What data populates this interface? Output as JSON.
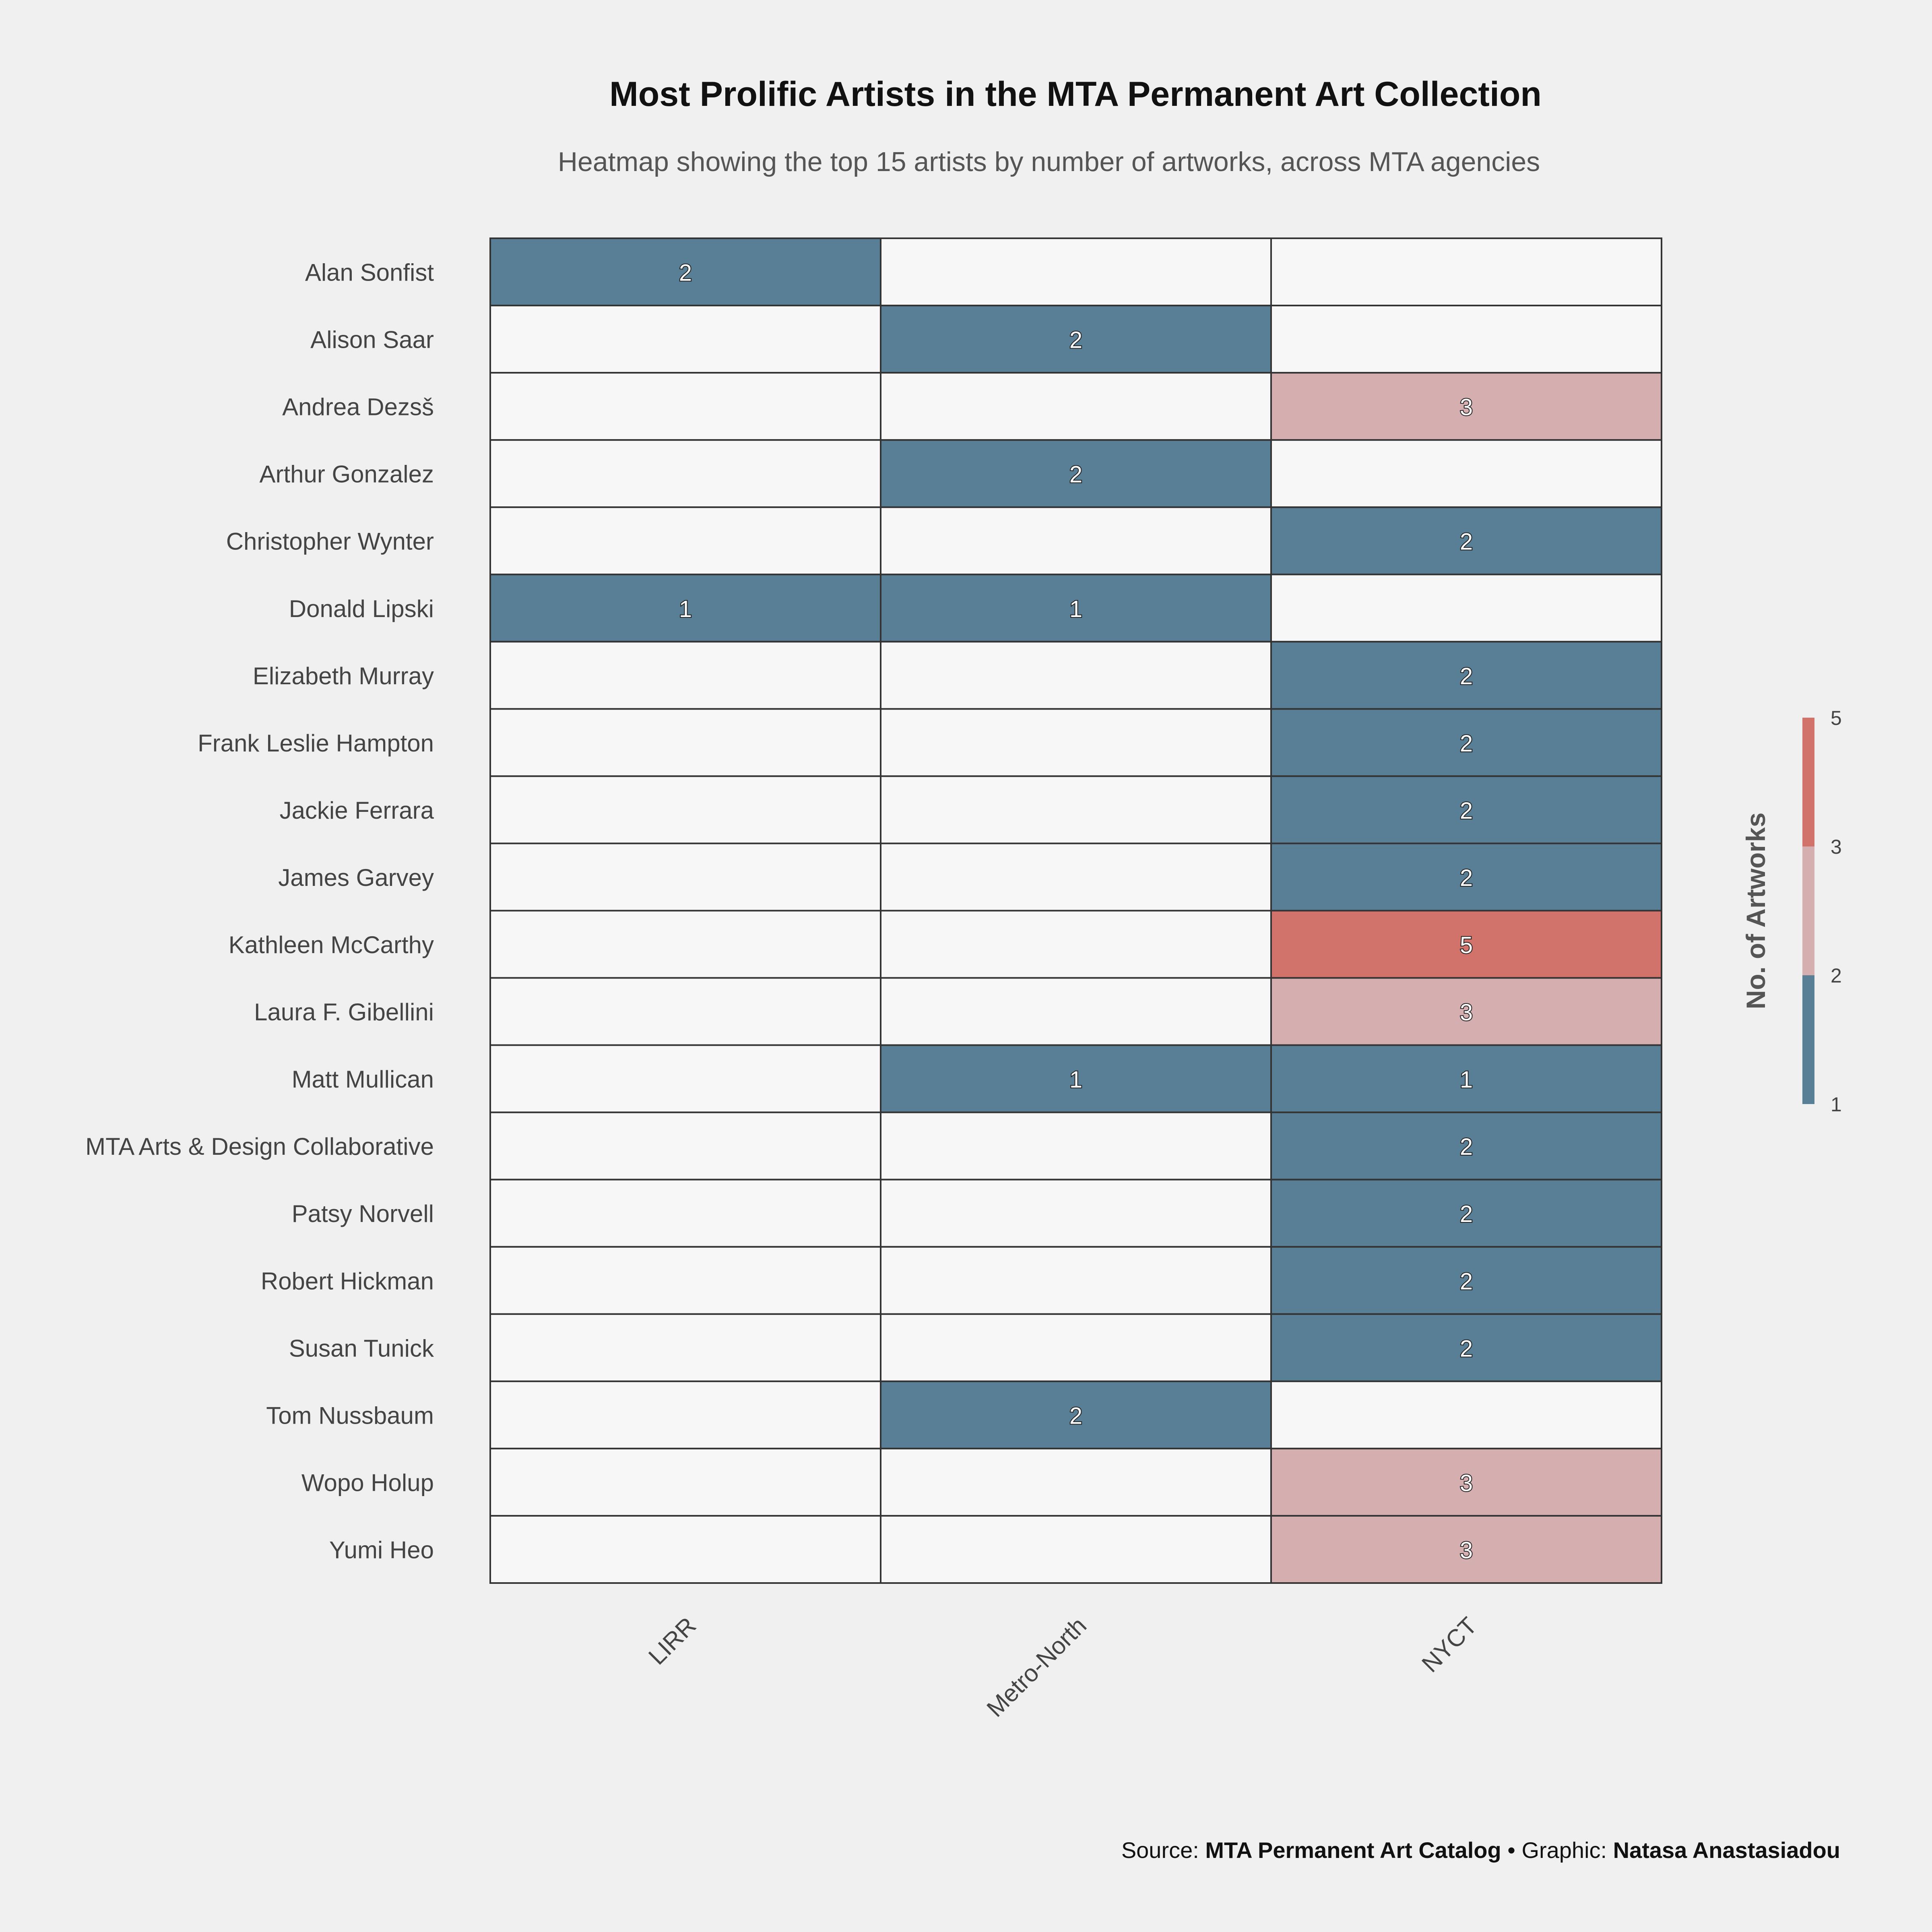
{
  "chart_data": {
    "type": "heatmap",
    "title": "Most Prolific Artists in the MTA Permanent Art Collection",
    "subtitle": "Heatmap showing the top 15 artists by number of artworks, across MTA agencies",
    "xlabel": "",
    "ylabel": "",
    "x_categories": [
      "LIRR",
      "Metro-North",
      "NYCT"
    ],
    "y_categories": [
      "Alan Sonfist",
      "Alison Saar",
      "Andrea Dezsš",
      "Arthur Gonzalez",
      "Christopher Wynter",
      "Donald Lipski",
      "Elizabeth Murray",
      "Frank Leslie Hampton",
      "Jackie Ferrara",
      "James Garvey",
      "Kathleen McCarthy",
      "Laura F. Gibellini",
      "Matt Mullican",
      "MTA Arts & Design Collaborative",
      "Patsy Norvell",
      "Robert Hickman",
      "Susan Tunick",
      "Tom Nussbaum",
      "Wopo Holup",
      "Yumi Heo"
    ],
    "values": [
      [
        2,
        null,
        null
      ],
      [
        null,
        2,
        null
      ],
      [
        null,
        null,
        3
      ],
      [
        null,
        2,
        null
      ],
      [
        null,
        null,
        2
      ],
      [
        1,
        1,
        null
      ],
      [
        null,
        null,
        2
      ],
      [
        null,
        null,
        2
      ],
      [
        null,
        null,
        2
      ],
      [
        null,
        null,
        2
      ],
      [
        null,
        null,
        5
      ],
      [
        null,
        null,
        3
      ],
      [
        null,
        1,
        1
      ],
      [
        null,
        null,
        2
      ],
      [
        null,
        null,
        2
      ],
      [
        null,
        null,
        2
      ],
      [
        null,
        null,
        2
      ],
      [
        null,
        2,
        null
      ],
      [
        null,
        null,
        3
      ],
      [
        null,
        null,
        3
      ]
    ],
    "color_scale": {
      "title": "No. of Artworks",
      "breaks": [
        1,
        2,
        3,
        5
      ],
      "colors": [
        "#587f96",
        "#d5aeaf",
        "#d1736b"
      ],
      "empty_color": "#f7f7f7",
      "border_color": "#333333"
    },
    "grid": false,
    "legend_position": "right"
  },
  "caption": {
    "source_prefix": "Source: ",
    "source": "MTA Permanent Art Catalog",
    "separator": " • ",
    "graphic_prefix": "Graphic: ",
    "graphic": "Natasa Anastasiadou"
  }
}
